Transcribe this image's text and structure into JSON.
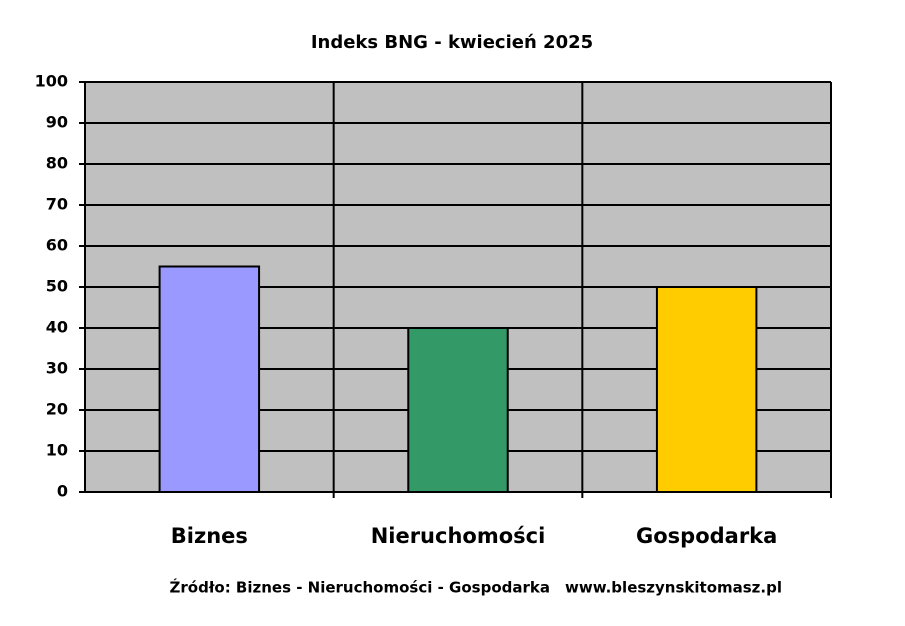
{
  "chart_data": {
    "type": "bar",
    "title": "Indeks BNG - kwiecień 2025",
    "categories": [
      "Biznes",
      "Nieruchomości",
      "Gospodarka"
    ],
    "values": [
      55,
      40,
      50
    ],
    "colors": [
      "#9999ff",
      "#339966",
      "#ffcc00"
    ],
    "ylim": [
      0,
      100
    ],
    "yticks": [
      0,
      10,
      20,
      30,
      40,
      50,
      60,
      70,
      80,
      90,
      100
    ],
    "grid": true,
    "source": "Źródło: Biznes - Nieruchomości - Gospodarka",
    "website": "www.bleszynskitomasz.pl"
  }
}
